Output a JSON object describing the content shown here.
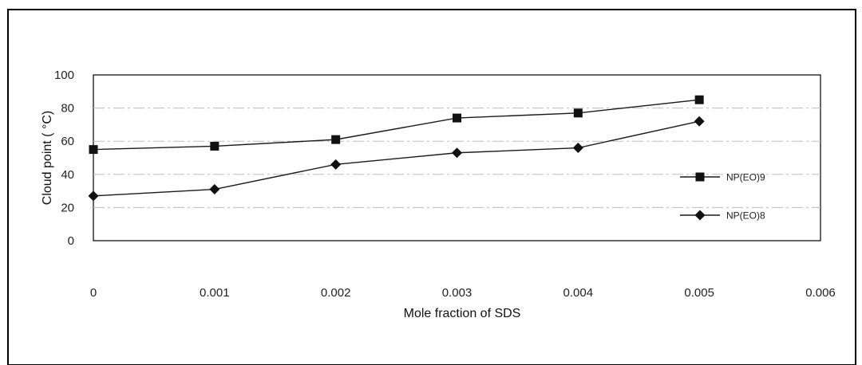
{
  "chart_data": {
    "type": "line",
    "xlabel": "Mole fraction of SDS",
    "ylabel": "Cloud point ( °C)",
    "xlim": [
      0,
      0.006
    ],
    "ylim": [
      0,
      100
    ],
    "x_ticks": [
      "0",
      "0.001",
      "0.002",
      "0.003",
      "0.004",
      "0.005",
      "0.006"
    ],
    "y_ticks": [
      "0",
      "20",
      "40",
      "60",
      "80",
      "100"
    ],
    "x": [
      0,
      0.001,
      0.002,
      0.003,
      0.004,
      0.005
    ],
    "series": [
      {
        "name": "NP(EO)9",
        "marker": "square",
        "values": [
          55,
          57,
          61,
          74,
          77,
          85
        ]
      },
      {
        "name": "NP(EO)8",
        "marker": "diamond",
        "values": [
          27,
          31,
          46,
          53,
          56,
          72
        ]
      }
    ],
    "legend_position": "right",
    "grid": "horizontal",
    "colors": {
      "line": "#1a1a1a",
      "marker": "#111111",
      "grid": "#bdbdbd"
    }
  }
}
